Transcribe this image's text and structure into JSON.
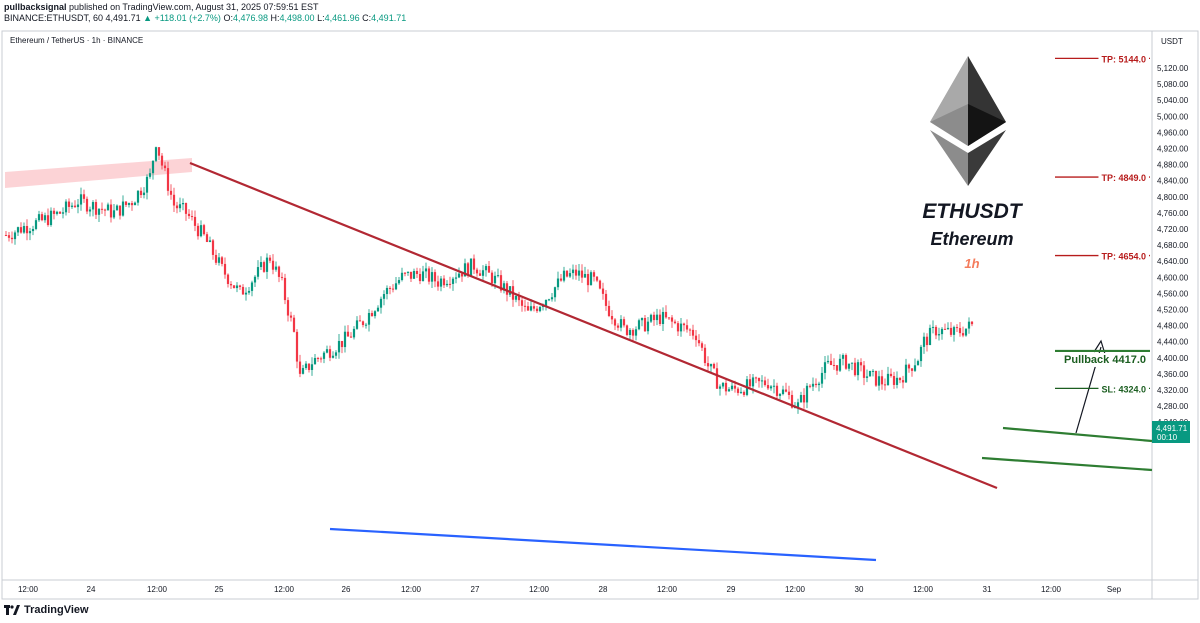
{
  "header": {
    "publisher": "pullbacksignal",
    "published_text": "published on TradingView.com, August 31, 2025 07:59:51 EST",
    "ticker_line": "BINANCE:ETHUSDT, 60",
    "last_price": "4,491.71",
    "change": "+118.01 (+2.7%)",
    "open_label": "O:",
    "open": "4,476.98",
    "high_label": "H:",
    "high": "4,498.00",
    "low_label": "L:",
    "low": "4,461.96",
    "close_label": "C:",
    "close": "4,491.71"
  },
  "symbol_line": "Ethereum / TetherUS · 1h · BINANCE",
  "footer": {
    "brand": "TradingView",
    "logo_icon": "tradingview-logo-icon"
  },
  "annotations": {
    "title": "ETHUSDT",
    "subtitle": "Ethereum",
    "timeframe": "1h",
    "tp1": "TP: 5144.0",
    "tp2": "TP: 4849.0",
    "tp3": "TP: 4654.0",
    "pullback": "Pullback 4417.0",
    "sl": "SL: 4324.0",
    "price_tag": "4,491.71",
    "countdown": "00:10",
    "currency": "USDT"
  },
  "colors": {
    "up": "#089981",
    "down": "#f23645",
    "trendline": "#b22833",
    "support": "#2962ff",
    "channel": "#2e7d32",
    "tp": "#b71c1c",
    "timeframe": "#f47c5c"
  },
  "chart_data": {
    "type": "candlestick",
    "symbol": "ETHUSDT",
    "timeframe": "1h",
    "y_axis": {
      "ticks": [
        5120,
        5080,
        5040,
        5000,
        4960,
        4920,
        4880,
        4840,
        4800,
        4760,
        4720,
        4680,
        4640,
        4600,
        4560,
        4520,
        4480,
        4440,
        4400,
        4360,
        4320,
        4280,
        4240
      ],
      "range": [
        4220,
        5150
      ]
    },
    "x_ticks": [
      "12:00",
      "24",
      "12:00",
      "25",
      "12:00",
      "26",
      "12:00",
      "27",
      "12:00",
      "28",
      "12:00",
      "29",
      "12:00",
      "30",
      "12:00",
      "31",
      "12:00",
      "Sep"
    ],
    "close_path": [
      [
        0,
        4705
      ],
      [
        6,
        4725
      ],
      [
        12,
        4740
      ],
      [
        18,
        4760
      ],
      [
        24,
        4790
      ],
      [
        30,
        4775
      ],
      [
        36,
        4760
      ],
      [
        42,
        4790
      ],
      [
        48,
        4850
      ],
      [
        50,
        4940
      ],
      [
        52,
        4880
      ],
      [
        56,
        4780
      ],
      [
        60,
        4760
      ],
      [
        66,
        4700
      ],
      [
        72,
        4620
      ],
      [
        78,
        4560
      ],
      [
        84,
        4610
      ],
      [
        88,
        4650
      ],
      [
        92,
        4580
      ],
      [
        96,
        4460
      ],
      [
        98,
        4350
      ],
      [
        102,
        4390
      ],
      [
        108,
        4420
      ],
      [
        114,
        4450
      ],
      [
        120,
        4500
      ],
      [
        126,
        4560
      ],
      [
        132,
        4600
      ],
      [
        138,
        4610
      ],
      [
        144,
        4590
      ],
      [
        150,
        4610
      ],
      [
        156,
        4630
      ],
      [
        162,
        4600
      ],
      [
        168,
        4560
      ],
      [
        174,
        4510
      ],
      [
        180,
        4550
      ],
      [
        186,
        4600
      ],
      [
        190,
        4610
      ],
      [
        196,
        4590
      ],
      [
        200,
        4530
      ],
      [
        206,
        4470
      ],
      [
        212,
        4480
      ],
      [
        218,
        4500
      ],
      [
        224,
        4480
      ],
      [
        230,
        4460
      ],
      [
        234,
        4380
      ],
      [
        238,
        4330
      ],
      [
        242,
        4320
      ],
      [
        248,
        4330
      ],
      [
        254,
        4340
      ],
      [
        260,
        4310
      ],
      [
        264,
        4280
      ],
      [
        268,
        4330
      ],
      [
        274,
        4380
      ],
      [
        280,
        4390
      ],
      [
        286,
        4360
      ],
      [
        292,
        4340
      ],
      [
        298,
        4350
      ],
      [
        304,
        4400
      ],
      [
        306,
        4440
      ],
      [
        310,
        4470
      ],
      [
        316,
        4460
      ],
      [
        322,
        4480
      ]
    ],
    "levels": [
      {
        "label": "TP: 5144.0",
        "value": 5144.0
      },
      {
        "label": "TP: 4849.0",
        "value": 4849.0
      },
      {
        "label": "TP: 4654.0",
        "value": 4654.0
      },
      {
        "label": "Pullback 4417.0",
        "value": 4417.0
      },
      {
        "label": "SL: 4324.0",
        "value": 4324.0
      }
    ],
    "last_price": 4491.71
  }
}
